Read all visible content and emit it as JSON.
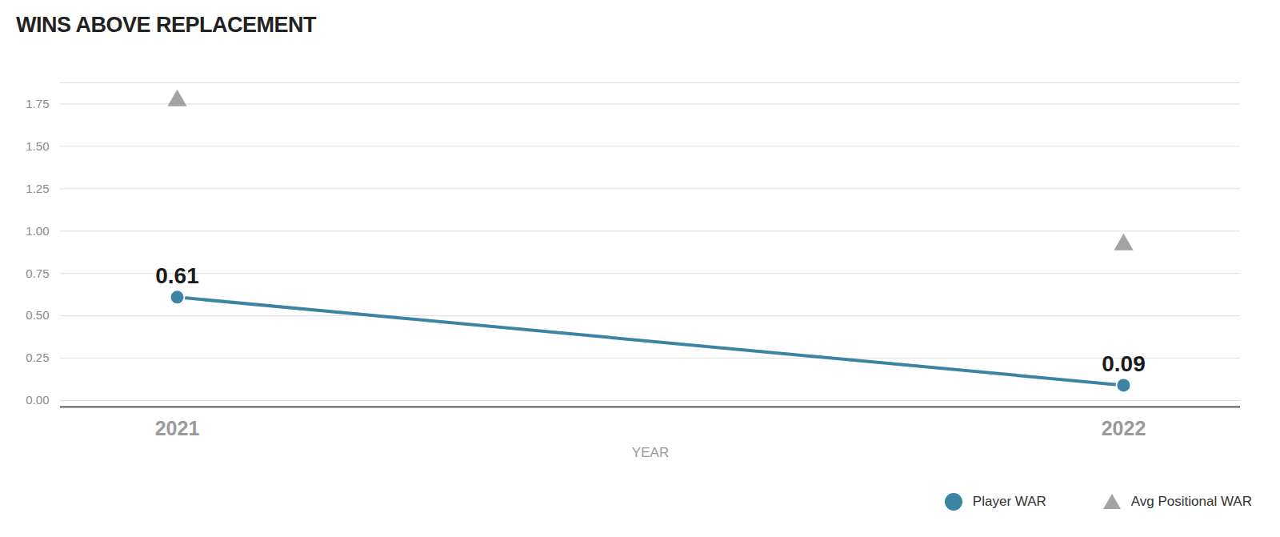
{
  "chart_data": {
    "type": "line",
    "title": "WINS ABOVE REPLACEMENT",
    "x_label": "YEAR",
    "categories": [
      "2021",
      "2022"
    ],
    "series": [
      {
        "name": "Player WAR",
        "color": "#3b84a3",
        "values": [
          0.61,
          0.09
        ],
        "type": "line",
        "marker": "circle",
        "data_labels": true
      },
      {
        "name": "Avg Positional WAR",
        "color": "#a3a3a3",
        "values": [
          1.77,
          0.92
        ],
        "type": "scatter",
        "marker": "triangle"
      }
    ],
    "ylim": [
      0,
      1.875
    ],
    "yticks": [
      {
        "value": 0,
        "label": "0.00"
      },
      {
        "value": 0.25,
        "label": "0.25"
      },
      {
        "value": 0.5,
        "label": "0.50"
      },
      {
        "value": 0.75,
        "label": "0.75"
      },
      {
        "value": 1,
        "label": "1.00"
      },
      {
        "value": 1.25,
        "label": "1.25"
      },
      {
        "value": 1.5,
        "label": "1.50"
      },
      {
        "value": 1.75,
        "label": "1.75"
      }
    ],
    "grid": true,
    "legend": "bottom-right"
  }
}
